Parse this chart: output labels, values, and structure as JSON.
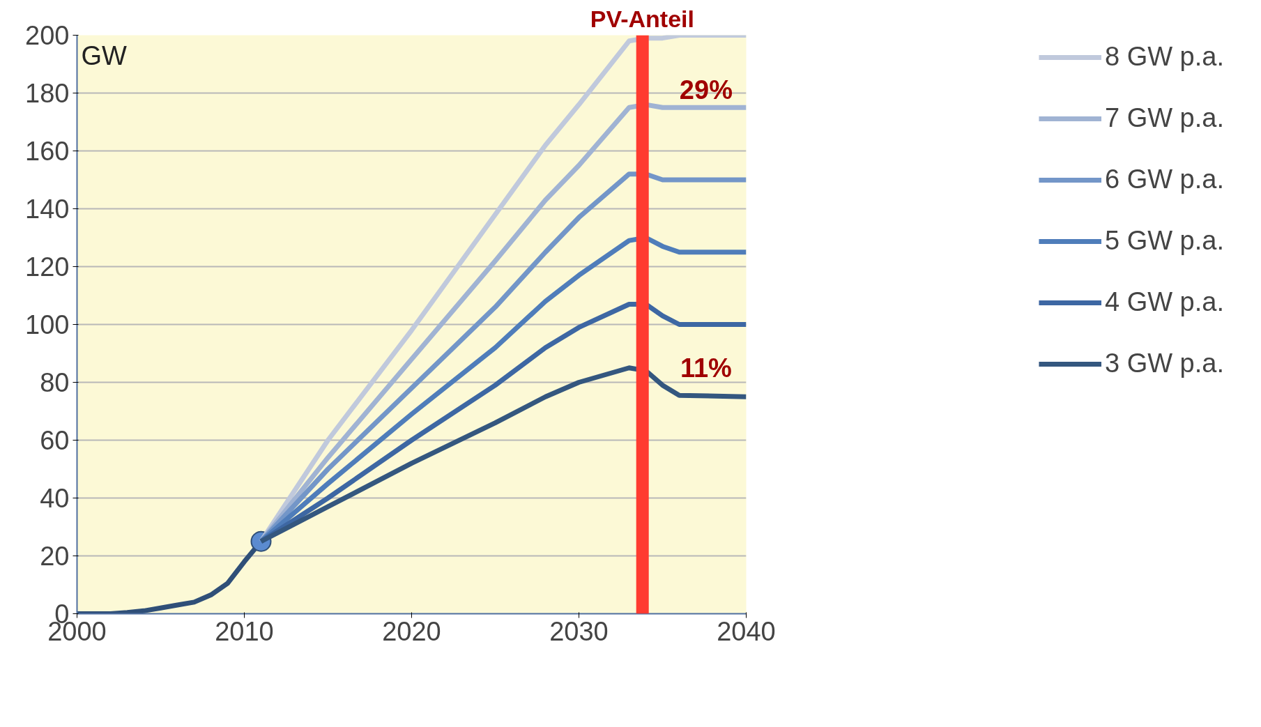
{
  "chart_data": {
    "type": "line",
    "ylabel": "GW",
    "xlim": [
      2000,
      2040
    ],
    "xticks": [
      2000,
      2010,
      2020,
      2030,
      2040
    ],
    "ylim": [
      0,
      200
    ],
    "yticks": [
      0,
      20,
      40,
      60,
      80,
      100,
      120,
      140,
      160,
      180,
      200
    ],
    "grid": "y",
    "legend": "right",
    "marker": "none",
    "line_style": "solid",
    "series": [
      {
        "color": "#2f4f78",
        "x": [
          2000,
          2002,
          2003,
          2004,
          2005,
          2006,
          2007,
          2008,
          2009,
          2010,
          2011
        ],
        "values": [
          0,
          0,
          0.4,
          1,
          2,
          3,
          4,
          6.5,
          10.5,
          18,
          25
        ]
      },
      {
        "type": "scatter",
        "color": "#5b8bd0",
        "marker": "circle",
        "x": [
          2011
        ],
        "values": [
          25
        ]
      },
      {
        "name": "8 GW p.a.",
        "color": "#c0c9dc",
        "x": [
          2011,
          2015,
          2020,
          2025,
          2028,
          2030,
          2033,
          2034,
          2035,
          2036,
          2040
        ],
        "values": [
          25,
          60,
          98,
          138,
          162,
          176,
          198,
          199,
          199,
          200,
          200
        ]
      },
      {
        "name": "7 GW p.a.",
        "color": "#a0b3d3",
        "x": [
          2011,
          2015,
          2020,
          2025,
          2028,
          2030,
          2033,
          2034,
          2035,
          2036,
          2040
        ],
        "values": [
          25,
          54,
          88,
          122,
          143,
          155,
          175,
          176,
          175,
          175,
          175
        ]
      },
      {
        "name": "6 GW p.a.",
        "color": "#7396c8",
        "x": [
          2011,
          2015,
          2020,
          2025,
          2028,
          2030,
          2033,
          2034,
          2035,
          2036,
          2040
        ],
        "values": [
          25,
          50,
          78,
          106,
          125,
          137,
          152,
          152,
          150,
          150,
          150
        ]
      },
      {
        "name": "5 GW p.a.",
        "color": "#4f7dba",
        "x": [
          2011,
          2015,
          2020,
          2025,
          2028,
          2030,
          2033,
          2034,
          2035,
          2036,
          2040
        ],
        "values": [
          25,
          45,
          69,
          92,
          108,
          117,
          129,
          130,
          127,
          125,
          125
        ]
      },
      {
        "name": "4 GW p.a.",
        "color": "#3d67a3",
        "x": [
          2011,
          2015,
          2020,
          2025,
          2028,
          2030,
          2033,
          2034,
          2035,
          2036,
          2040
        ],
        "values": [
          25,
          40,
          60,
          79,
          92,
          99,
          107,
          107,
          103,
          100,
          100
        ]
      },
      {
        "name": "3 GW p.a.",
        "color": "#34577f",
        "x": [
          2011,
          2015,
          2020,
          2025,
          2028,
          2030,
          2033,
          2034,
          2035,
          2036,
          2040
        ],
        "values": [
          25,
          37,
          52,
          66,
          75,
          80,
          85,
          84,
          79,
          75.5,
          75
        ]
      }
    ],
    "ref_lines": [
      {
        "axis": "x",
        "value": 2033.8,
        "label": "PV-Anteil",
        "color": "#ff3b30"
      }
    ],
    "annotations": [
      "29%",
      "11%"
    ]
  }
}
